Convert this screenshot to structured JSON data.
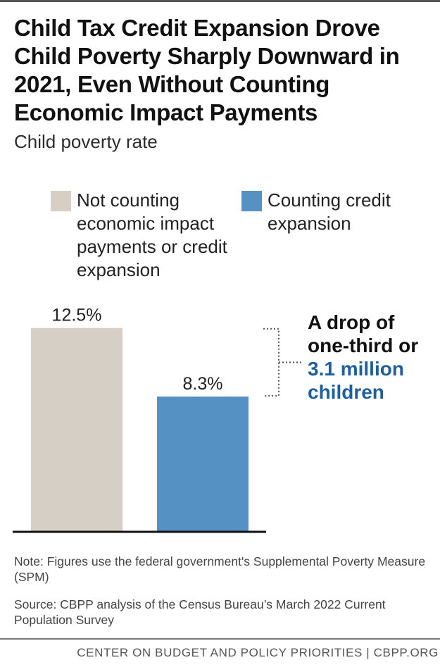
{
  "title": "Child Tax Credit Expansion Drove Child Poverty Sharply Downward in 2021, Even Without Counting Economic Impact Payments",
  "subtitle": "Child poverty rate",
  "annotation": {
    "line1": "A drop of",
    "line2": "one-third or",
    "highlight1": "3.1 million",
    "highlight2": "children",
    "highlight_color": "#1f5fa0"
  },
  "chart_data": {
    "type": "bar",
    "categories": [
      "Not counting economic impact payments or credit expansion",
      "Counting credit expansion"
    ],
    "values": [
      12.5,
      8.3
    ],
    "data_labels": [
      "12.5%",
      "8.3%"
    ],
    "colors": [
      "#d5cfc6",
      "#5591c2"
    ],
    "legend": [
      "Not counting economic impact payments or credit expansion",
      "Counting credit expansion"
    ],
    "legend_position": "top",
    "ylim": [
      0,
      14
    ],
    "grid": false,
    "title": "Child Tax Credit Expansion Drove Child Poverty Sharply Downward in 2021, Even Without Counting Economic Impact Payments",
    "xlabel": "",
    "ylabel": "Child poverty rate"
  },
  "note": "Note: Figures use the federal government's Supplemental Poverty Measure (SPM)",
  "source": "Source: CBPP analysis of the Census Bureau’s March 2022 Current Population Survey",
  "footer": "CENTER ON BUDGET AND POLICY PRIORITIES | CBPP.ORG"
}
